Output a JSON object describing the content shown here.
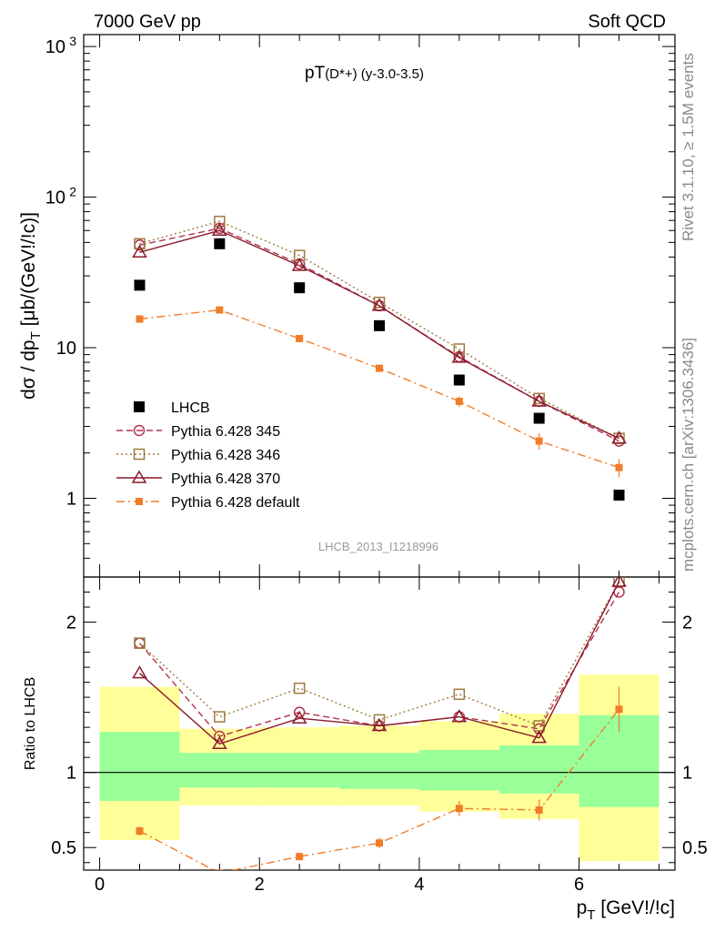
{
  "header": {
    "left": "7000 GeV pp",
    "right": "Soft QCD"
  },
  "side_text": {
    "rivet": "Rivet 3.1.10, ≥ 1.5M events",
    "mcplots": "mcplots.cern.ch [arXiv:1306.3436]"
  },
  "chart_data": [
    {
      "type": "scatter",
      "panel": "main",
      "title": "pT(D*+) (y-3.0-3.5)",
      "title_parts": {
        "main": "pT",
        "sub": "(D*+) (y-3.0-3.5)"
      },
      "watermark": "LHCB_2013_I1218996",
      "ylabel": "dσ / dp_T [μb/(GeV!/!c)]",
      "ylabel_parts": {
        "a": "dσ / dp",
        "sub": "T",
        "b": " [μb/(GeV!/!c)]"
      },
      "yscale": "log",
      "xlim": [
        -0.2,
        7.2
      ],
      "ylim": [
        0.3,
        1200
      ],
      "yticks": [
        {
          "v": 1,
          "t": "1"
        },
        {
          "v": 10,
          "t": "10"
        },
        {
          "v": 100,
          "t": "10",
          "exp": "2"
        },
        {
          "v": 1000,
          "t": "10",
          "exp": "3"
        }
      ],
      "legend_position": "lower-left",
      "x": [
        0.5,
        1.5,
        2.5,
        3.5,
        4.5,
        5.5,
        6.5
      ],
      "series": [
        {
          "name": "LHCB",
          "color": "#000000",
          "marker": "filled-square",
          "line": "none",
          "values": [
            26,
            49,
            25,
            14,
            6.1,
            3.4,
            1.05
          ]
        },
        {
          "name": "Pythia 6.428 345",
          "color": "#b2334f",
          "marker": "open-circle",
          "line": "dashed",
          "values": [
            48,
            62,
            36,
            19,
            8.7,
            4.4,
            2.4
          ]
        },
        {
          "name": "Pythia 6.428 346",
          "color": "#9f7a3e",
          "marker": "open-square",
          "line": "dotted",
          "values": [
            49,
            69,
            41,
            20,
            9.8,
            4.6,
            2.5
          ]
        },
        {
          "name": "Pythia 6.428 370",
          "color": "#8b1a2b",
          "marker": "open-triangle",
          "line": "solid",
          "values": [
            43,
            60,
            35,
            19,
            8.6,
            4.4,
            2.5
          ]
        },
        {
          "name": "Pythia 6.428 default",
          "color": "#f07c2a",
          "marker": "filled-small-square",
          "line": "dashdot",
          "values": [
            15.5,
            17.8,
            11.5,
            7.3,
            4.4,
            2.4,
            1.6
          ],
          "err": [
            0.6,
            0.7,
            0.5,
            0.4,
            0.35,
            0.3,
            0.22
          ]
        }
      ]
    },
    {
      "type": "scatter",
      "panel": "ratio",
      "ylabel": "Ratio to LHCB",
      "xlabel": "p_T [GeV!/!c]",
      "xlabel_parts": {
        "a": "p",
        "sub": "T",
        "b": " [GeV!/!c]"
      },
      "xlim": [
        -0.2,
        7.2
      ],
      "ylim": [
        0.35,
        2.3
      ],
      "xticks": [
        0,
        2,
        4,
        6
      ],
      "yticks": [
        0.5,
        1,
        2
      ],
      "reference_line": 1,
      "bands": [
        {
          "x": [
            0,
            1
          ],
          "stat_sys_outer": [
            0.55,
            1.57
          ],
          "stat_inner": [
            0.81,
            1.27
          ]
        },
        {
          "x": [
            1,
            2
          ],
          "stat_sys_outer": [
            0.78,
            1.29
          ],
          "stat_inner": [
            0.9,
            1.13
          ]
        },
        {
          "x": [
            2,
            3
          ],
          "stat_sys_outer": [
            0.78,
            1.3
          ],
          "stat_inner": [
            0.9,
            1.13
          ]
        },
        {
          "x": [
            3,
            4
          ],
          "stat_sys_outer": [
            0.78,
            1.31
          ],
          "stat_inner": [
            0.89,
            1.13
          ]
        },
        {
          "x": [
            4,
            5
          ],
          "stat_sys_outer": [
            0.74,
            1.34
          ],
          "stat_inner": [
            0.88,
            1.15
          ]
        },
        {
          "x": [
            5,
            6
          ],
          "stat_sys_outer": [
            0.69,
            1.39
          ],
          "stat_inner": [
            0.86,
            1.18
          ]
        },
        {
          "x": [
            6,
            7
          ],
          "stat_sys_outer": [
            0.41,
            1.65
          ],
          "stat_inner": [
            0.77,
            1.38
          ]
        }
      ],
      "x": [
        0.5,
        1.5,
        2.5,
        3.5,
        4.5,
        5.5,
        6.5
      ],
      "series": [
        {
          "name": "Pythia 6.428 345",
          "color": "#b2334f",
          "marker": "open-circle",
          "line": "dashed",
          "values": [
            1.86,
            1.24,
            1.4,
            1.31,
            1.37,
            1.29,
            2.2
          ]
        },
        {
          "name": "Pythia 6.428 346",
          "color": "#9f7a3e",
          "marker": "open-square",
          "line": "dotted",
          "values": [
            1.86,
            1.37,
            1.56,
            1.35,
            1.52,
            1.31,
            2.27
          ]
        },
        {
          "name": "Pythia 6.428 370",
          "color": "#8b1a2b",
          "marker": "open-triangle",
          "line": "solid",
          "values": [
            1.66,
            1.19,
            1.36,
            1.31,
            1.37,
            1.23,
            2.27
          ]
        },
        {
          "name": "Pythia 6.428 default",
          "color": "#f07c2a",
          "marker": "filled-small-square",
          "line": "dashdot",
          "values": [
            0.61,
            0.33,
            0.44,
            0.53,
            0.76,
            0.75,
            1.42
          ],
          "err": [
            0.03,
            0.02,
            0.025,
            0.035,
            0.05,
            0.07,
            0.15
          ]
        }
      ]
    }
  ]
}
